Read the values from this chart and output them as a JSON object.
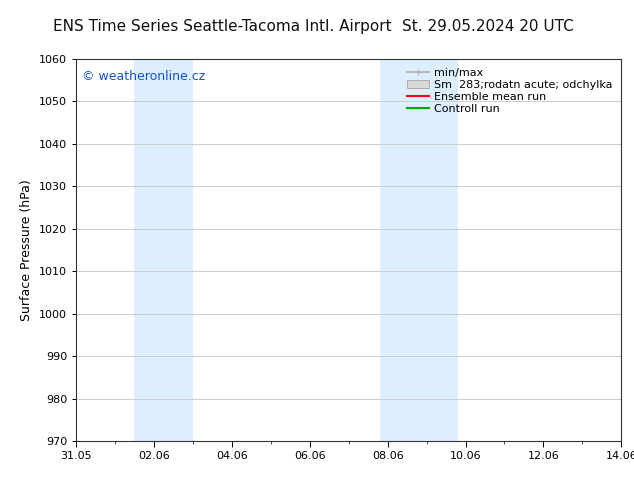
{
  "title_left": "ENS Time Series Seattle-Tacoma Intl. Airport",
  "title_right": "St. 29.05.2024 20 UTC",
  "ylabel": "Surface Pressure (hPa)",
  "ylim": [
    970,
    1060
  ],
  "yticks": [
    970,
    980,
    990,
    1000,
    1010,
    1020,
    1030,
    1040,
    1050,
    1060
  ],
  "xtick_labels": [
    "31.05",
    "02.06",
    "04.06",
    "06.06",
    "08.06",
    "10.06",
    "12.06",
    "14.06"
  ],
  "xtick_positions": [
    0,
    2,
    4,
    6,
    8,
    10,
    12,
    14
  ],
  "xlim": [
    0,
    14
  ],
  "watermark": "© weatheronline.cz",
  "legend_entries": [
    {
      "label": "min/max",
      "color": "#b8b8b8",
      "style": "minmax"
    },
    {
      "label": "Sm  283;rodatn acute; odchylka",
      "color": "#d8d8d8",
      "style": "spread"
    },
    {
      "label": "Ensemble mean run",
      "color": "#ff0000",
      "style": "line"
    },
    {
      "label": "Controll run",
      "color": "#00aa00",
      "style": "line"
    }
  ],
  "shaded_bands": [
    {
      "x_start": 1.5,
      "x_end": 3.0,
      "color": "#ddeeff"
    },
    {
      "x_start": 7.8,
      "x_end": 9.8,
      "color": "#ddeeff"
    }
  ],
  "background_color": "#ffffff",
  "plot_bg_color": "#ffffff",
  "grid_color": "#cccccc",
  "title_fontsize": 11,
  "tick_fontsize": 8,
  "ylabel_fontsize": 9,
  "legend_fontsize": 8,
  "watermark_fontsize": 9
}
